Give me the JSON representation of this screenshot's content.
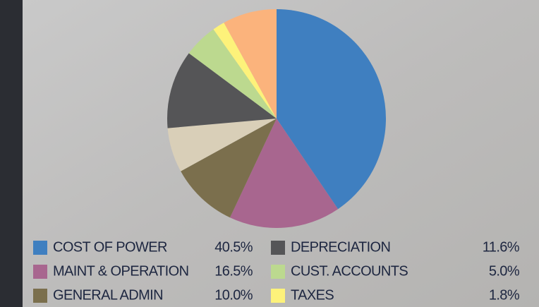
{
  "chart_data": {
    "type": "pie",
    "categories": [
      "COST OF POWER",
      "MAINT & OPERATION",
      "GENERAL ADMIN",
      null,
      "DEPRECIATION",
      "CUST. ACCOUNTS",
      "TAXES",
      null
    ],
    "values": [
      40.5,
      16.5,
      10.0,
      6.6,
      11.6,
      5.0,
      1.8,
      8.0
    ],
    "value_labels": [
      "40.5%",
      "16.5%",
      "10.0%",
      null,
      "11.6%",
      "5.0%",
      "1.8%",
      null
    ],
    "colors": [
      "#3f7fc0",
      "#a8668f",
      "#7b6f4d",
      "#d9cfb8",
      "#555557",
      "#bcd98f",
      "#fdf27a",
      "#fbb37c"
    ],
    "legend": "bottom"
  }
}
